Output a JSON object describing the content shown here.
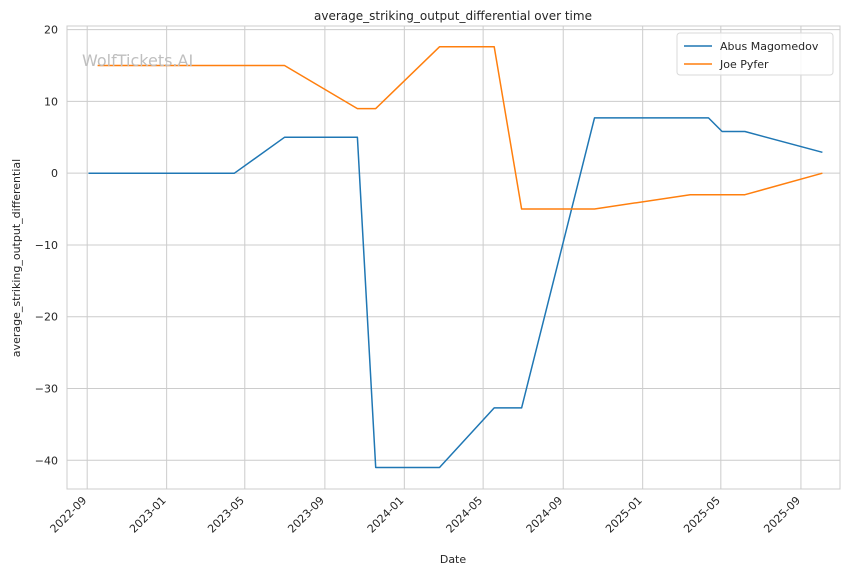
{
  "chart_data": {
    "type": "line",
    "title": "average_striking_output_differential over time",
    "xlabel": "Date",
    "ylabel": "average_striking_output_differential",
    "watermark": "WolfTickets.AI",
    "grid": true,
    "legend_position": "top-right",
    "xlim": [
      "2022-08-01",
      "2025-10-31"
    ],
    "ylim": [
      -44,
      20.5
    ],
    "x_ticks": [
      "2022-09",
      "2023-01",
      "2023-05",
      "2023-09",
      "2024-01",
      "2024-05",
      "2024-09",
      "2025-01",
      "2025-05",
      "2025-09"
    ],
    "y_ticks": [
      20,
      10,
      0,
      -10,
      -20,
      -30,
      -40
    ],
    "series": [
      {
        "name": "Abus Magomedov",
        "color": "#1f77b4",
        "points": [
          [
            "2022-09-03",
            0
          ],
          [
            "2023-04-15",
            0
          ],
          [
            "2023-07-01",
            5
          ],
          [
            "2023-10-21",
            5
          ],
          [
            "2023-11-18",
            -41
          ],
          [
            "2024-02-24",
            -41
          ],
          [
            "2024-05-18",
            -32.7
          ],
          [
            "2024-06-29",
            -32.7
          ],
          [
            "2024-10-19",
            7.7
          ],
          [
            "2025-04-12",
            7.7
          ],
          [
            "2025-05-03",
            5.8
          ],
          [
            "2025-06-07",
            5.8
          ],
          [
            "2025-10-04",
            2.9
          ]
        ]
      },
      {
        "name": "Joe Pyfer",
        "color": "#ff7f0e",
        "points": [
          [
            "2022-09-17",
            15
          ],
          [
            "2023-07-01",
            15
          ],
          [
            "2023-10-21",
            9
          ],
          [
            "2023-11-18",
            9
          ],
          [
            "2024-02-24",
            17.6
          ],
          [
            "2024-05-18",
            17.6
          ],
          [
            "2024-06-29",
            -5
          ],
          [
            "2024-10-19",
            -5
          ],
          [
            "2025-03-15",
            -3
          ],
          [
            "2025-06-07",
            -3
          ],
          [
            "2025-10-04",
            0
          ]
        ]
      }
    ]
  }
}
